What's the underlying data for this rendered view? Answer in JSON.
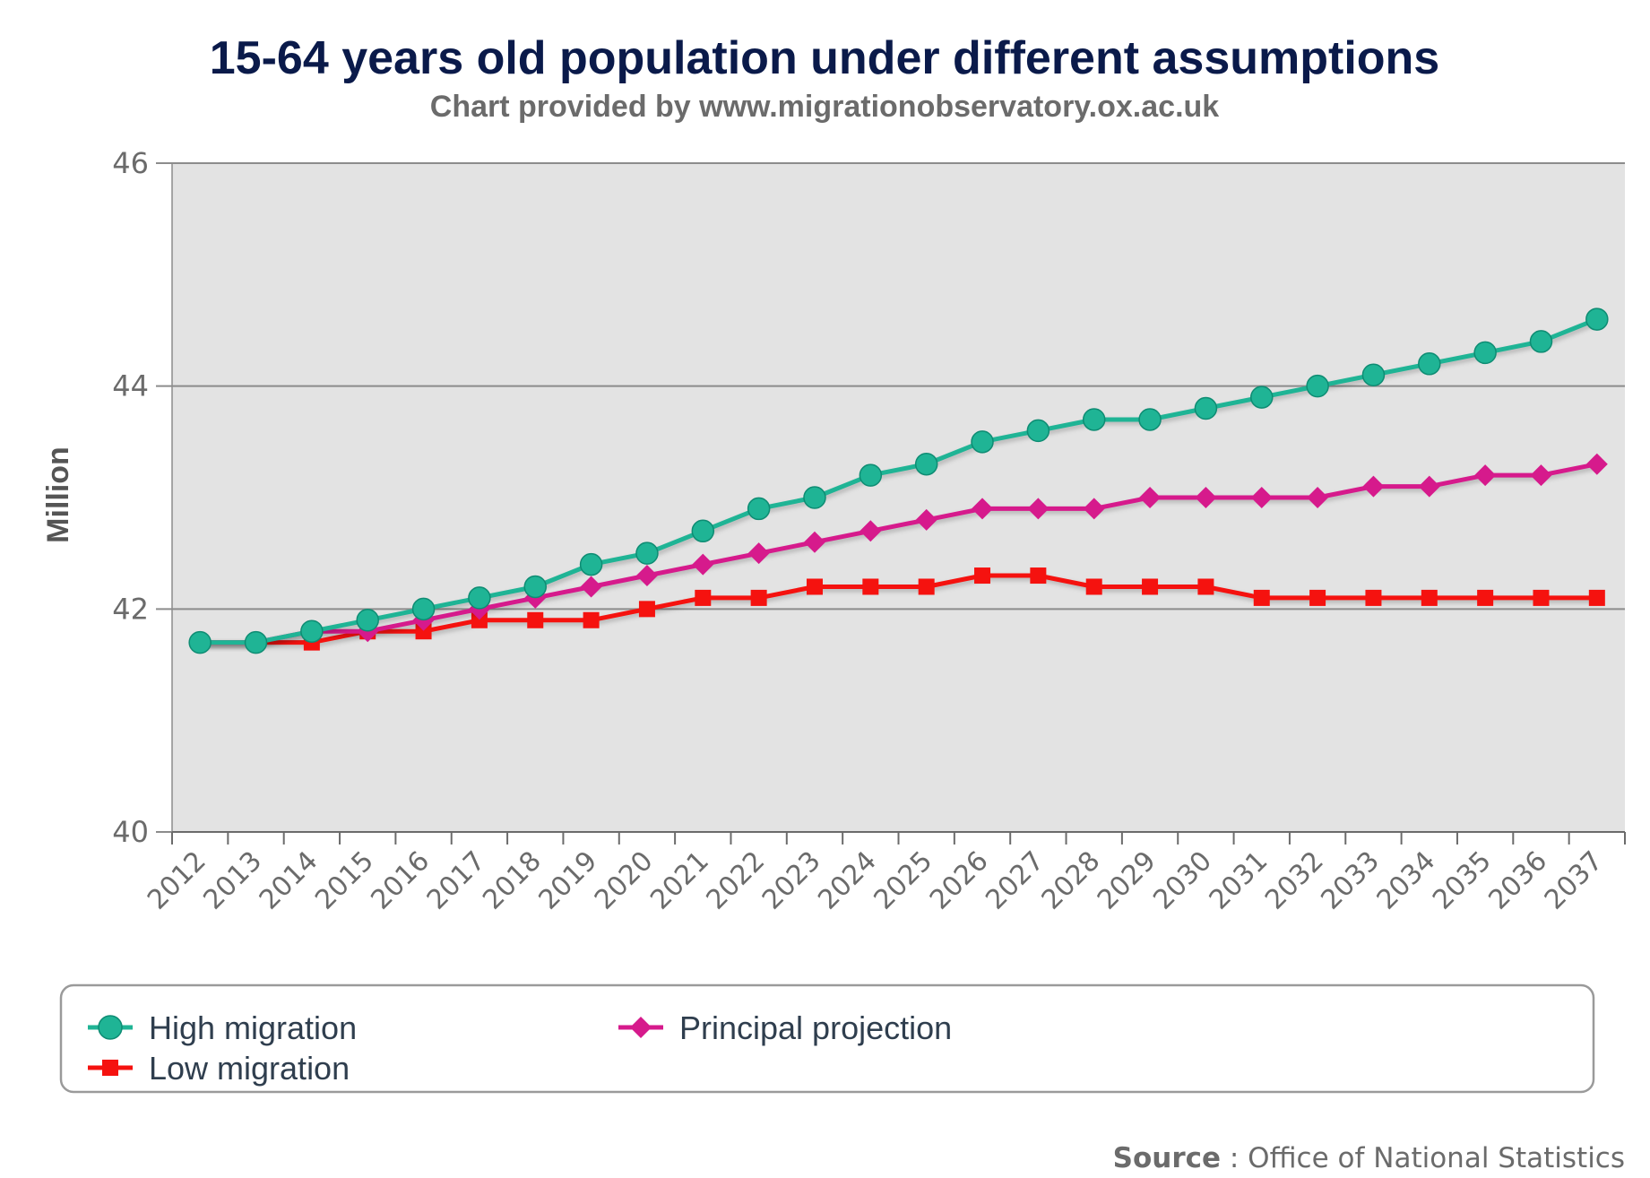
{
  "chart_data": {
    "type": "line",
    "title": "15-64 years old population under different assumptions",
    "subtitle": "Chart provided by www.migrationobservatory.ox.ac.uk",
    "ylabel": "Million",
    "xlabel": "",
    "ylim": [
      40,
      46
    ],
    "yticks": [
      "40",
      "42",
      "44",
      "46"
    ],
    "categories": [
      "2012",
      "2013",
      "2014",
      "2015",
      "2016",
      "2017",
      "2018",
      "2019",
      "2020",
      "2021",
      "2022",
      "2023",
      "2024",
      "2025",
      "2026",
      "2027",
      "2028",
      "2029",
      "2030",
      "2031",
      "2032",
      "2033",
      "2034",
      "2035",
      "2036",
      "2037"
    ],
    "grid": true,
    "legend_position": "bottom",
    "series": [
      {
        "name": "High migration",
        "color": "#1fb495",
        "marker": "circle",
        "values": [
          41.7,
          41.7,
          41.8,
          41.9,
          42.0,
          42.1,
          42.2,
          42.4,
          42.5,
          42.7,
          42.9,
          43.0,
          43.2,
          43.3,
          43.5,
          43.6,
          43.7,
          43.7,
          43.8,
          43.9,
          44.0,
          44.1,
          44.2,
          44.3,
          44.4,
          44.6
        ]
      },
      {
        "name": "Principal projection",
        "color": "#d61a8c",
        "marker": "diamond",
        "values": [
          41.7,
          41.7,
          41.8,
          41.8,
          41.9,
          42.0,
          42.1,
          42.2,
          42.3,
          42.4,
          42.5,
          42.6,
          42.7,
          42.8,
          42.9,
          42.9,
          42.9,
          43.0,
          43.0,
          43.0,
          43.0,
          43.1,
          43.1,
          43.2,
          43.2,
          43.3
        ]
      },
      {
        "name": "Low migration",
        "color": "#f5120f",
        "marker": "square",
        "values": [
          41.7,
          41.7,
          41.7,
          41.8,
          41.8,
          41.9,
          41.9,
          41.9,
          42.0,
          42.1,
          42.1,
          42.2,
          42.2,
          42.2,
          42.3,
          42.3,
          42.2,
          42.2,
          42.2,
          42.1,
          42.1,
          42.1,
          42.1,
          42.1,
          42.1,
          42.1
        ]
      }
    ],
    "source_label": "Source",
    "source_text": " : Office of National Statistics",
    "colors": {
      "plot_background": "#e3e3e3",
      "grid": "#8c8c8c",
      "title": "#0a1a4a"
    }
  }
}
